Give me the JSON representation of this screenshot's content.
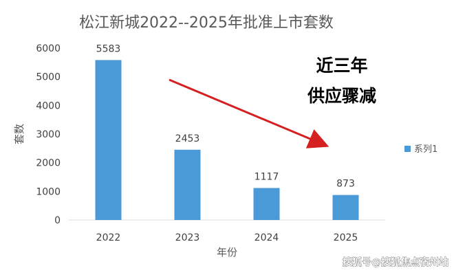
{
  "chart_data": {
    "type": "bar",
    "title": "松江新城2022--2025年批准上市套数",
    "xlabel": "年份",
    "ylabel": "套数",
    "categories": [
      "2022",
      "2023",
      "2024",
      "2025"
    ],
    "series": [
      {
        "name": "系列1",
        "values": [
          5583,
          2453,
          1117,
          873
        ]
      }
    ],
    "ylim": [
      0,
      6000
    ],
    "yticks": [
      0,
      1000,
      2000,
      3000,
      4000,
      5000,
      6000
    ],
    "grid": false,
    "legend": "right",
    "annotations": [
      "近三年",
      "供应骤减"
    ],
    "colors": {
      "bar": "#4a9ad8",
      "arrow": "#d42020"
    }
  },
  "watermark": "搜狐号@搜狐焦点宿州站"
}
